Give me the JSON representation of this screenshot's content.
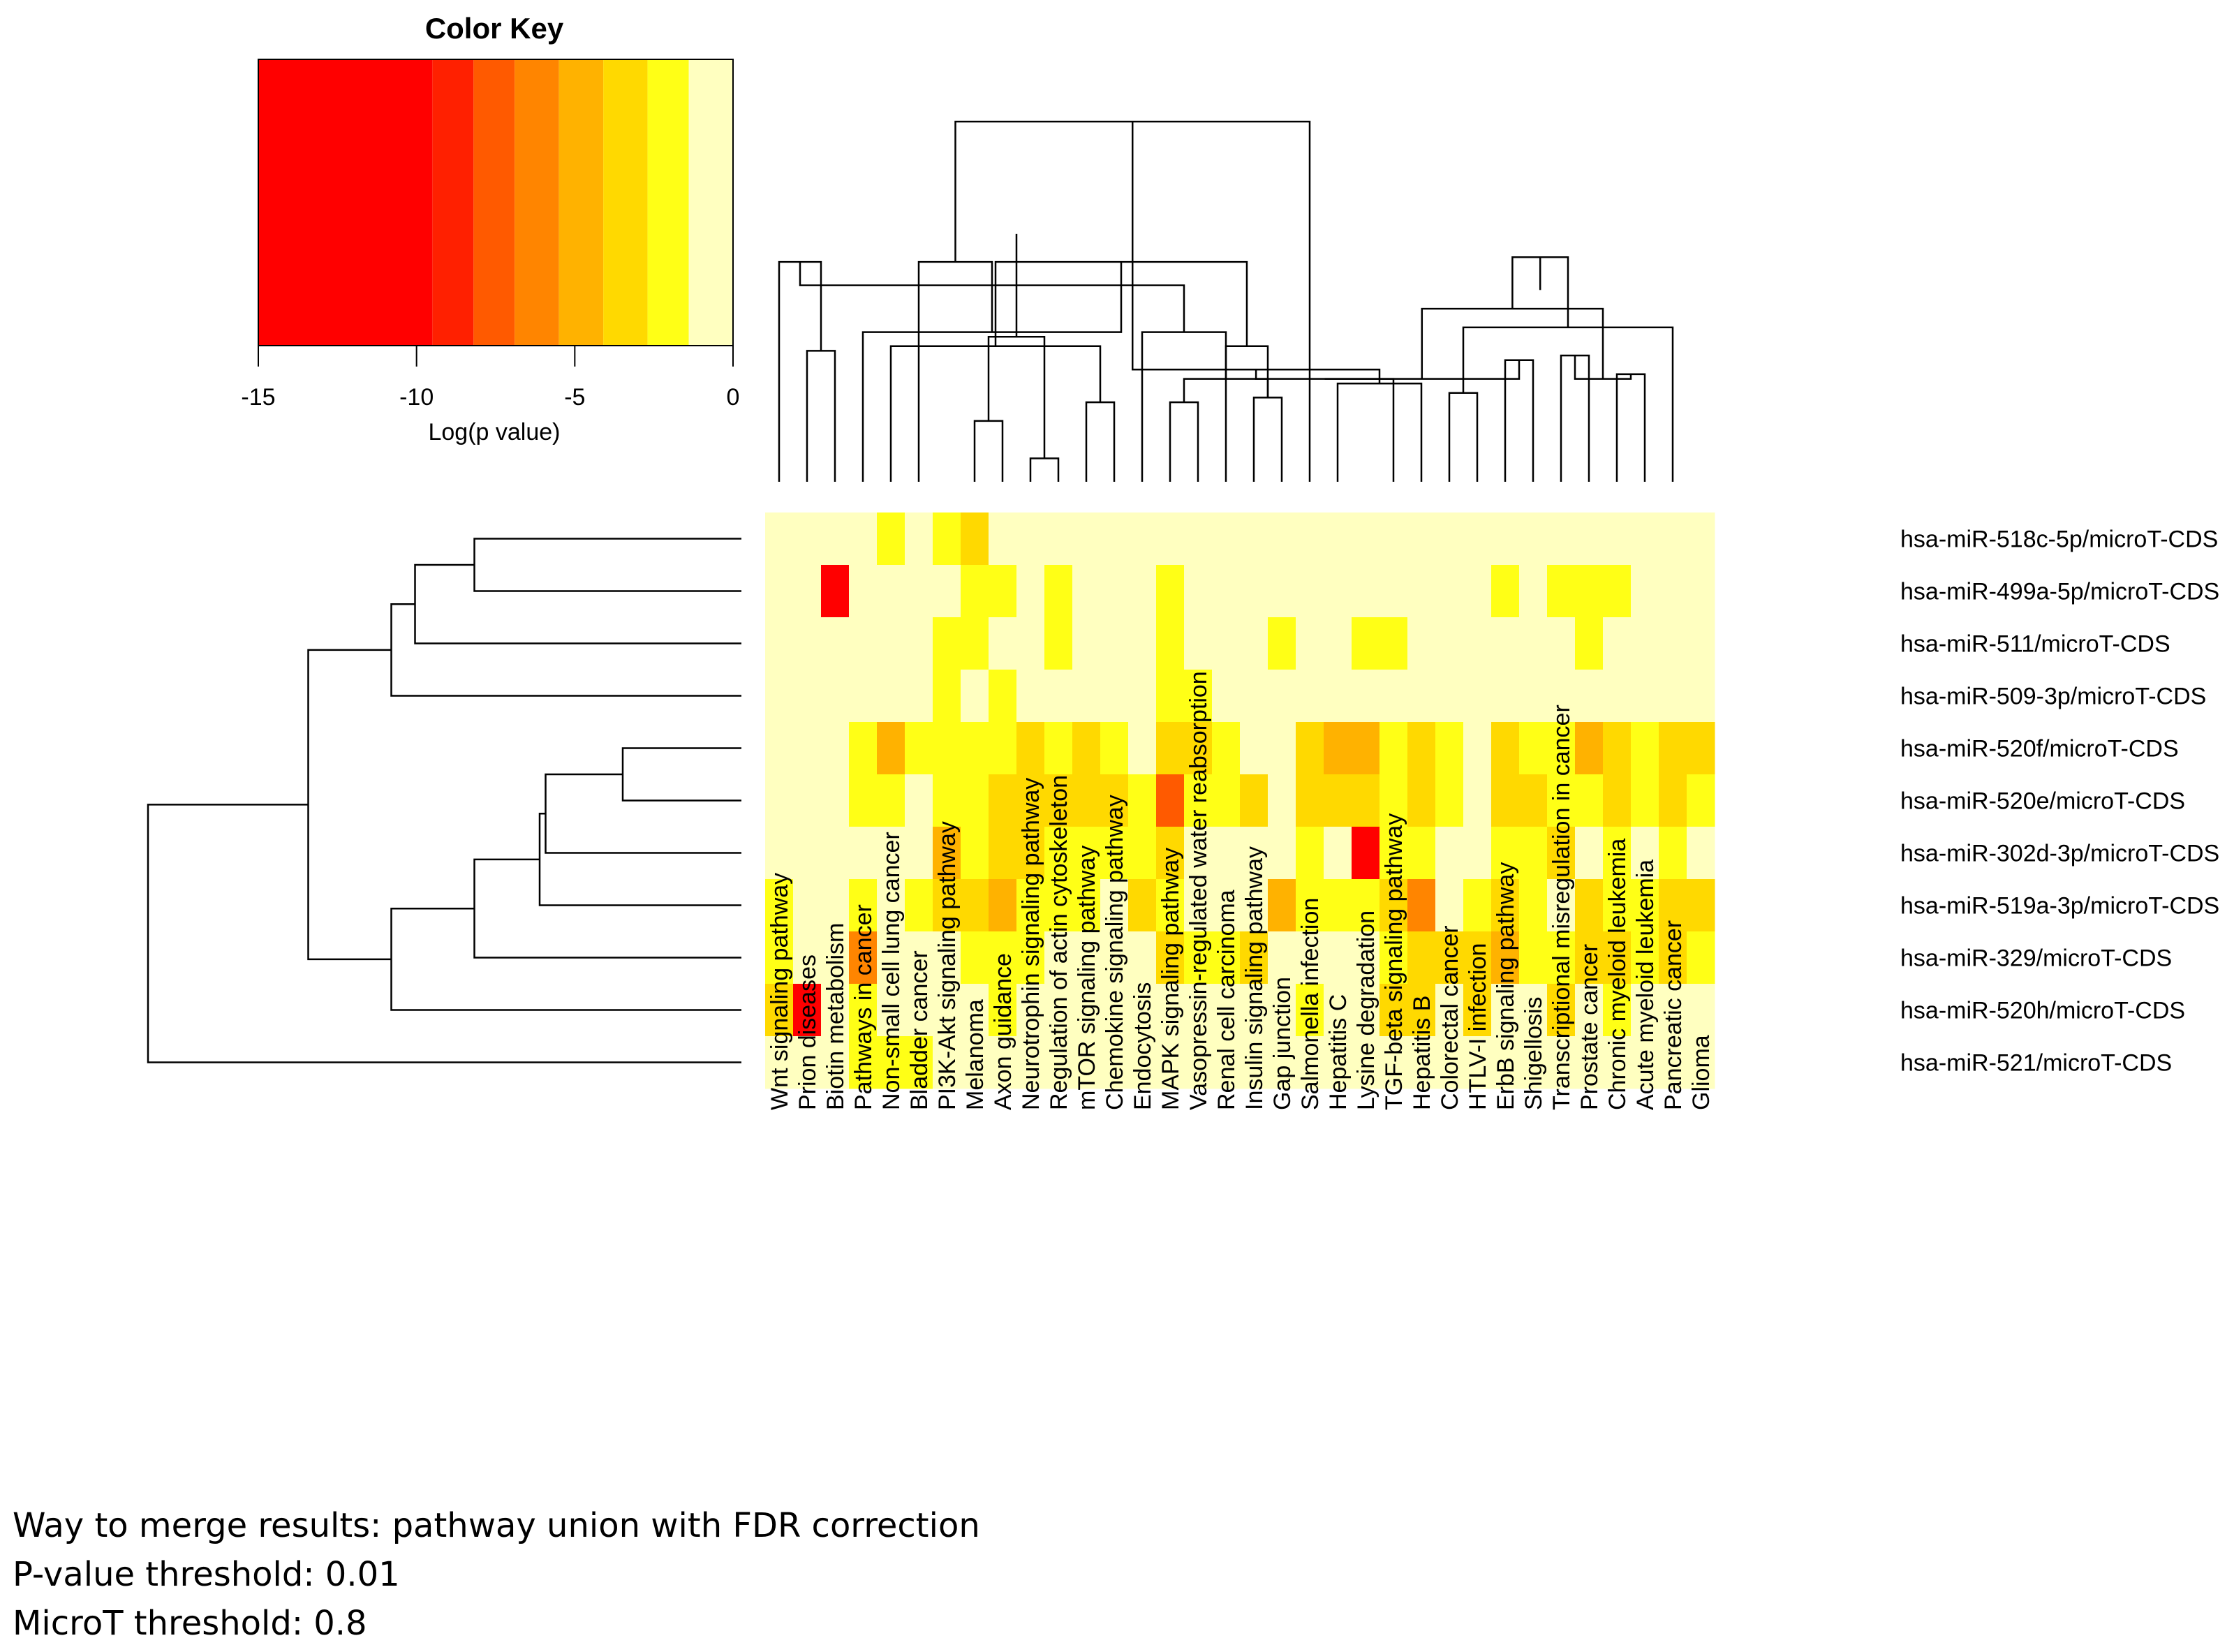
{
  "chart_data": {
    "type": "heatmap",
    "color_key": {
      "title": "Color Key",
      "xlabel": "Log(p value)",
      "range": [
        -15,
        0
      ],
      "ticks": [
        -15,
        -10,
        -5,
        0
      ],
      "tick_labels": [
        "-15",
        "-10",
        "-5",
        "0"
      ],
      "bins": [
        {
          "from": -15,
          "to": -9.5,
          "color": "#ff0000"
        },
        {
          "from": -9.5,
          "to": -8.2,
          "color": "#ff2000"
        },
        {
          "from": -8.2,
          "to": -6.9,
          "color": "#ff5a00"
        },
        {
          "from": -6.9,
          "to": -5.5,
          "color": "#ff8500"
        },
        {
          "from": -5.5,
          "to": -4.1,
          "color": "#ffb200"
        },
        {
          "from": -4.1,
          "to": -2.7,
          "color": "#ffd900"
        },
        {
          "from": -2.7,
          "to": -1.4,
          "color": "#ffff16"
        },
        {
          "from": -1.4,
          "to": 0,
          "color": "#ffffc0"
        }
      ]
    },
    "rows": [
      "hsa-miR-518c-5p/microT-CDS",
      "hsa-miR-499a-5p/microT-CDS",
      "hsa-miR-511/microT-CDS",
      "hsa-miR-509-3p/microT-CDS",
      "hsa-miR-520f/microT-CDS",
      "hsa-miR-520e/microT-CDS",
      "hsa-miR-302d-3p/microT-CDS",
      "hsa-miR-519a-3p/microT-CDS",
      "hsa-miR-329/microT-CDS",
      "hsa-miR-520h/microT-CDS",
      "hsa-miR-521/microT-CDS"
    ],
    "columns": [
      "Wnt signaling pathway",
      "Prion diseases",
      "Biotin metabolism",
      "Pathways in cancer",
      "Non-small cell lung cancer",
      "Bladder cancer",
      "PI3K-Akt signaling pathway",
      "Melanoma",
      "Axon guidance",
      "Neurotrophin signaling pathway",
      "Regulation of actin cytoskeleton",
      "mTOR signaling pathway",
      "Chemokine signaling pathway",
      "Endocytosis",
      "MAPK signaling pathway",
      "Vasopressin-regulated water reabsorption",
      "Renal cell carcinoma",
      "Insulin signaling pathway",
      "Gap junction",
      "Salmonella infection",
      "Hepatitis C",
      "Lysine degradation",
      "TGF-beta signaling pathway",
      "Hepatitis B",
      "Colorectal cancer",
      "HTLV-I infection",
      "ErbB signaling pathway",
      "Shigellosis",
      "Transcriptional misregulation in cancer",
      "Prostate cancer",
      "Chronic myeloid leukemia",
      "Acute myeloid leukemia",
      "Pancreatic cancer",
      "Glioma"
    ],
    "values": [
      [
        0,
        0,
        0,
        0,
        -2,
        0,
        -2,
        -3,
        0,
        0,
        0,
        0,
        0,
        0,
        0,
        0,
        0,
        0,
        0,
        0,
        0,
        0,
        0,
        0,
        0,
        0,
        0,
        0,
        0,
        0,
        0,
        0,
        0,
        0
      ],
      [
        0,
        0,
        -12,
        0,
        0,
        0,
        0,
        -2,
        -2,
        0,
        -2,
        0,
        0,
        0,
        -2,
        0,
        0,
        0,
        0,
        0,
        0,
        0,
        0,
        0,
        0,
        0,
        -2,
        0,
        -2,
        -2,
        -2,
        0,
        0,
        0
      ],
      [
        0,
        0,
        0,
        0,
        0,
        0,
        -2,
        -2,
        0,
        0,
        -2,
        0,
        0,
        0,
        -2,
        0,
        0,
        0,
        -2,
        0,
        0,
        -2,
        -2,
        0,
        0,
        0,
        0,
        0,
        0,
        -2,
        0,
        0,
        0,
        0
      ],
      [
        0,
        0,
        0,
        0,
        0,
        0,
        -2,
        0,
        -2,
        0,
        0,
        0,
        0,
        0,
        -2,
        -2,
        0,
        0,
        0,
        0,
        0,
        0,
        0,
        0,
        0,
        0,
        0,
        0,
        0,
        0,
        0,
        0,
        0,
        0
      ],
      [
        0,
        0,
        0,
        -2,
        -5,
        -2,
        -2,
        -2,
        -2,
        -4,
        -2,
        -4,
        -2,
        0,
        -3,
        -3,
        -2,
        0,
        0,
        -4,
        -5,
        -5,
        -2,
        -3,
        -2,
        0,
        -3,
        -2,
        -2,
        -5,
        -3,
        -2,
        -4,
        -3
      ],
      [
        0,
        0,
        0,
        -2,
        -2,
        0,
        -2,
        -2,
        -3,
        -3,
        -3,
        -4,
        -3,
        -2,
        -8,
        -2,
        -2,
        -4,
        0,
        -3,
        -3,
        -4,
        -2,
        -3,
        -2,
        0,
        -3,
        -3,
        -2,
        -2,
        -4,
        -2,
        -3,
        -2
      ],
      [
        0,
        0,
        0,
        0,
        0,
        0,
        -5,
        -2,
        -3,
        -4,
        -2,
        -2,
        -2,
        -2,
        -3,
        0,
        0,
        0,
        0,
        -2,
        0,
        -10,
        -2,
        -2,
        0,
        0,
        -2,
        -2,
        -3,
        0,
        -2,
        0,
        -2,
        0
      ],
      [
        -2,
        0,
        0,
        -2,
        0,
        -2,
        -3,
        -3,
        -5,
        -2,
        -2,
        -2,
        0,
        -3,
        -2,
        0,
        0,
        0,
        -5,
        -2,
        -2,
        -2,
        -4,
        -6,
        0,
        -2,
        -4,
        -2,
        0,
        -4,
        -2,
        -2,
        -3,
        -3
      ],
      [
        -2,
        0,
        0,
        -6,
        0,
        0,
        0,
        -2,
        -2,
        -2,
        0,
        0,
        0,
        0,
        -4,
        -2,
        -2,
        -4,
        0,
        0,
        0,
        0,
        -2,
        -4,
        -4,
        -3,
        -5,
        -2,
        -2,
        -3,
        -4,
        -2,
        -4,
        -2
      ],
      [
        -3,
        -12,
        0,
        -2,
        0,
        0,
        0,
        0,
        -2,
        0,
        0,
        0,
        0,
        0,
        0,
        0,
        0,
        0,
        0,
        -2,
        0,
        0,
        -4,
        -4,
        0,
        -4,
        0,
        0,
        -3,
        0,
        -2,
        0,
        0,
        0
      ],
      [
        0,
        0,
        0,
        -2,
        -2,
        -2,
        0,
        0,
        0,
        0,
        0,
        0,
        0,
        0,
        0,
        0,
        0,
        0,
        0,
        0,
        0,
        0,
        0,
        0,
        0,
        0,
        0,
        0,
        0,
        0,
        0,
        0,
        0,
        0
      ]
    ],
    "column_dendrogram": [
      [
        1,
        2,
        0.28
      ],
      [
        9,
        10,
        0.05
      ],
      [
        11,
        12,
        0.17
      ],
      [
        7,
        8,
        0.13
      ],
      [
        14,
        15,
        0.17
      ],
      [
        17,
        18,
        0.18
      ],
      [
        0,
        -1,
        0.47
      ],
      [
        -5,
        -6,
        0.22
      ],
      [
        -4,
        -2,
        0.31
      ],
      [
        13,
        -8,
        0.32
      ],
      [
        4,
        -3,
        0.29
      ],
      [
        -7,
        -10,
        0.42
      ],
      [
        16,
        -6,
        0.29
      ],
      [
        -11,
        -13,
        0.47
      ],
      [
        -9,
        -15,
        0.53
      ],
      [
        3,
        -14,
        0.32
      ],
      [
        5,
        -16,
        0.47
      ],
      [
        19,
        -17,
        0.77
      ],
      [
        20,
        23,
        0.21
      ],
      [
        -18,
        -19,
        0.24
      ],
      [
        22,
        -20,
        0.22
      ],
      [
        24,
        25,
        0.19
      ],
      [
        30,
        31,
        0.23
      ],
      [
        26,
        27,
        0.26
      ],
      [
        28,
        29,
        0.27
      ],
      [
        -23,
        -25,
        0.22
      ],
      [
        -24,
        -21,
        0.22
      ],
      [
        -26,
        -27,
        0.37
      ],
      [
        -22,
        32,
        0.33
      ],
      [
        -28,
        -29,
        0.48
      ],
      [
        -30,
        -31,
        0.41
      ],
      [
        -32,
        -33,
        0.64
      ],
      [
        -34,
        -12,
        0.78
      ],
      [
        -35,
        -36,
        0.94
      ],
      [
        -37,
        -38,
        1.0
      ]
    ],
    "row_dendrogram": [
      [
        0,
        1,
        0.45
      ],
      [
        4,
        5,
        0.2
      ],
      [
        2,
        -1,
        0.55
      ],
      [
        3,
        -3,
        0.59
      ],
      [
        -2,
        6,
        0.33
      ],
      [
        7,
        -5,
        0.34
      ],
      [
        8,
        -6,
        0.45
      ],
      [
        -7,
        9,
        0.59
      ],
      [
        -8,
        -4,
        0.73
      ],
      [
        -9,
        10,
        1.0
      ]
    ]
  },
  "footnotes": [
    "Way to merge results: pathway union with FDR correction",
    "P-value threshold: 0.01",
    "MicroT threshold: 0.8"
  ],
  "colors": {
    "line": "#000000",
    "background": "#ffffc0"
  }
}
